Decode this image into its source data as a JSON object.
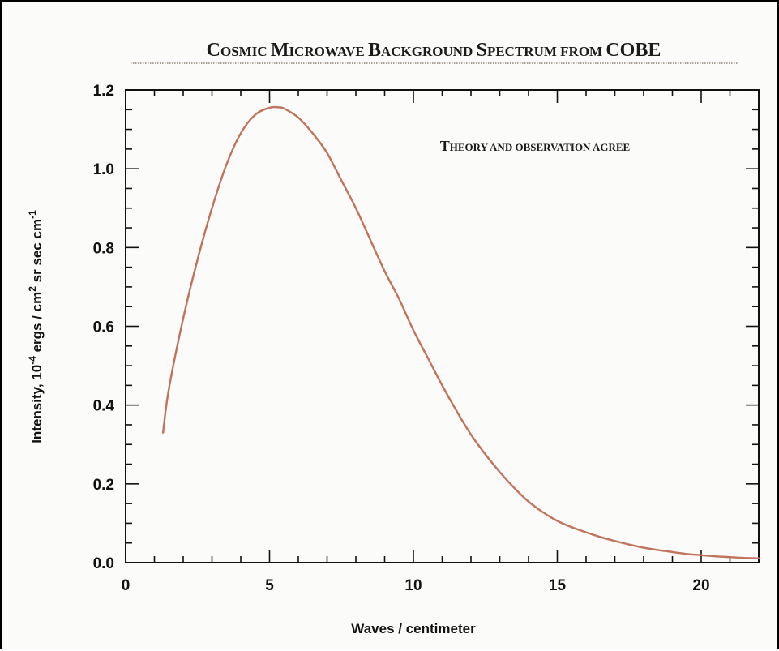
{
  "chart_data": {
    "type": "line",
    "title": "Cosmic Microwave Background Spectrum from COBE",
    "annotation": "Theory and observation agree",
    "xlabel": "Waves / centimeter",
    "ylabel": {
      "prefix": "Intensity, 10",
      "exp1": "-4",
      "middle": " ergs / cm",
      "exp2": "2",
      "suffix": " sr sec cm",
      "exp3": "-1"
    },
    "xlim": [
      0,
      22
    ],
    "ylim": [
      0,
      1.2
    ],
    "x_ticks": [
      0,
      5,
      10,
      15,
      20
    ],
    "y_ticks": [
      0.0,
      0.2,
      0.4,
      0.6,
      0.8,
      1.0,
      1.2
    ],
    "x_tick_labels": [
      "0",
      "5",
      "10",
      "15",
      "20"
    ],
    "y_tick_labels": [
      "0.0",
      "0.2",
      "0.4",
      "0.6",
      "0.8",
      "1.0",
      "1.2"
    ],
    "grid": false,
    "line_color": "#c0735a",
    "series": [
      {
        "x": [
          1.3,
          1.5,
          2.0,
          2.5,
          3.0,
          3.5,
          4.0,
          4.5,
          5.0,
          5.3,
          5.5,
          6.0,
          6.5,
          7.0,
          7.5,
          8.0,
          8.5,
          9.0,
          9.5,
          10.0,
          10.5,
          11.0,
          11.5,
          12.0,
          12.5,
          13.0,
          13.5,
          14.0,
          14.5,
          15.0,
          15.5,
          16.0,
          16.5,
          17.0,
          17.5,
          18.0,
          18.5,
          19.0,
          19.5,
          20.0,
          20.5,
          21.0,
          21.5,
          22.0
        ],
        "values": [
          0.33,
          0.44,
          0.62,
          0.77,
          0.9,
          1.01,
          1.09,
          1.137,
          1.155,
          1.156,
          1.153,
          1.13,
          1.09,
          1.04,
          0.97,
          0.9,
          0.82,
          0.74,
          0.67,
          0.59,
          0.52,
          0.45,
          0.385,
          0.325,
          0.275,
          0.23,
          0.19,
          0.155,
          0.128,
          0.106,
          0.09,
          0.077,
          0.065,
          0.055,
          0.046,
          0.038,
          0.032,
          0.027,
          0.022,
          0.019,
          0.016,
          0.014,
          0.012,
          0.011
        ]
      }
    ]
  }
}
